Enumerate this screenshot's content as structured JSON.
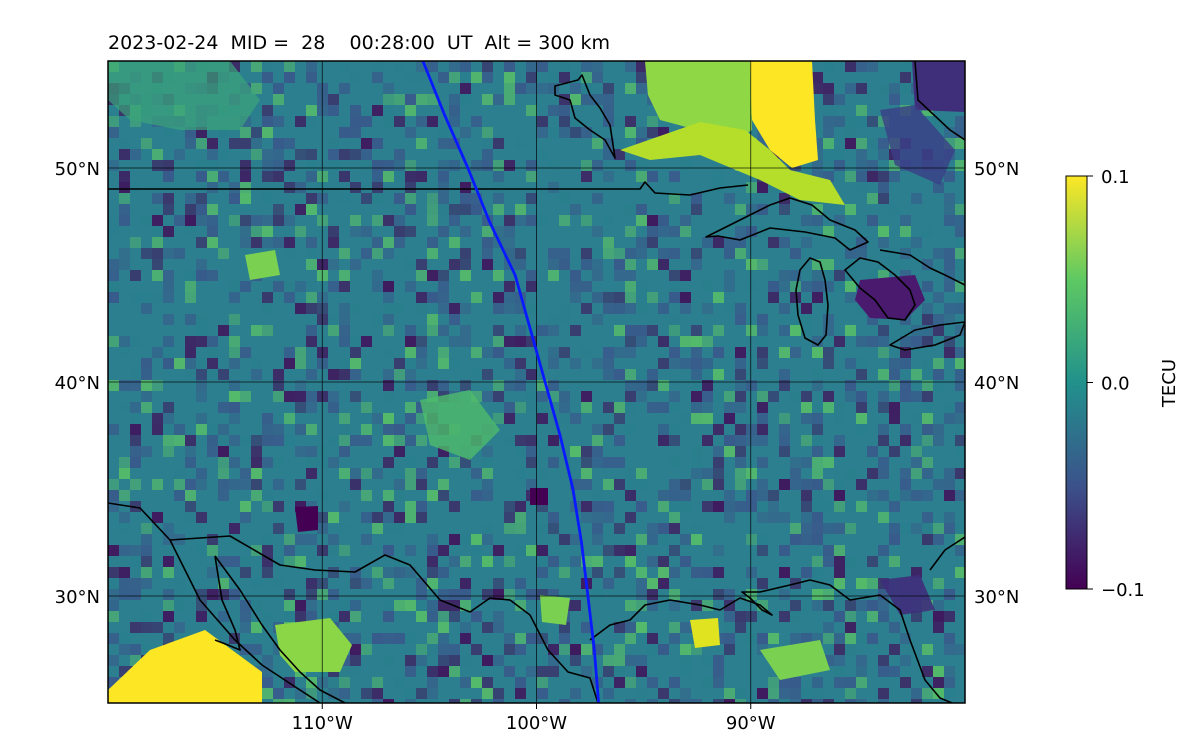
{
  "title": "2023-02-24  MID =  28    00:28:00  UT  Alt = 300 km",
  "map": {
    "lon_range": [
      -120,
      -80
    ],
    "lat_range": [
      25,
      55
    ],
    "lon_ticks": [
      {
        "value": -110,
        "label": "110°W"
      },
      {
        "value": -100,
        "label": "100°W"
      },
      {
        "value": -90,
        "label": "90°W"
      }
    ],
    "lat_ticks": [
      {
        "value": 30,
        "label": "30°N"
      },
      {
        "value": 40,
        "label": "40°N"
      },
      {
        "value": 50,
        "label": "50°N"
      }
    ],
    "grid": true,
    "colormap": [
      "#440154",
      "#3b528b",
      "#21918c",
      "#5ec962",
      "#fde725"
    ],
    "terminator_color": "#0a1aff",
    "terminator_path": [
      [
        -105.3,
        55
      ],
      [
        -104.3,
        52.5
      ],
      [
        -103.2,
        50
      ],
      [
        -102.2,
        47.5
      ],
      [
        -101.0,
        45
      ],
      [
        -100.3,
        42.5
      ],
      [
        -99.6,
        40
      ],
      [
        -98.9,
        37.5
      ],
      [
        -98.3,
        35
      ],
      [
        -97.9,
        32.5
      ],
      [
        -97.6,
        30
      ],
      [
        -97.3,
        27.5
      ],
      [
        -97.1,
        25
      ]
    ]
  },
  "colorbar": {
    "label": "TECU",
    "min": -0.1,
    "max": 0.1,
    "ticks": [
      {
        "value": 0.1,
        "label": "0.1"
      },
      {
        "value": 0.0,
        "label": "0.0"
      },
      {
        "value": -0.1,
        "label": "−0.1"
      }
    ],
    "colors": [
      "#440154",
      "#3b528b",
      "#21918c",
      "#5ec962",
      "#fde725"
    ]
  }
}
